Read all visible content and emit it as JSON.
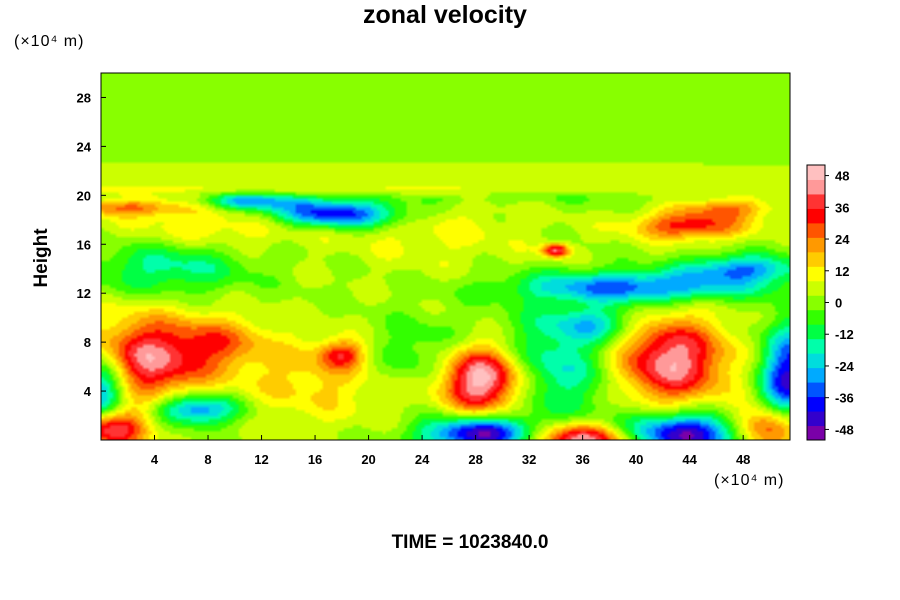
{
  "chart_data": {
    "type": "heatmap",
    "title": "zonal velocity",
    "xlabel": "",
    "ylabel": "Height",
    "x_unit": "(×10⁴ m)",
    "y_unit": "(×10⁴ m)",
    "xlim": [
      0,
      51.5
    ],
    "ylim": [
      0,
      30
    ],
    "xticks": [
      4,
      8,
      12,
      16,
      20,
      24,
      28,
      32,
      36,
      40,
      44,
      48
    ],
    "yticks": [
      4,
      8,
      12,
      16,
      20,
      24,
      28
    ],
    "colorbar": {
      "ticks": [
        48,
        36,
        24,
        12,
        0,
        -12,
        -24,
        -36,
        -48
      ],
      "range": [
        -52,
        52
      ],
      "colors": [
        "#7a00a8",
        "#3300cc",
        "#0000ff",
        "#0055ff",
        "#00aaff",
        "#00dddd",
        "#00ffaa",
        "#00ff44",
        "#33ff00",
        "#88ff00",
        "#ccff00",
        "#ffff00",
        "#ffcc00",
        "#ff9900",
        "#ff5500",
        "#ff0000",
        "#ff3333",
        "#ff9999",
        "#ffc0c0"
      ]
    },
    "field": {
      "background": 2,
      "features": [
        {
          "x": 3,
          "y": 6.5,
          "amp": 42,
          "sx": 3.5,
          "sy": 2.5
        },
        {
          "x": 9,
          "y": 8,
          "amp": 18,
          "sx": 2.5,
          "sy": 1.5
        },
        {
          "x": 28.5,
          "y": 5,
          "amp": 55,
          "sx": 2.2,
          "sy": 2.0
        },
        {
          "x": 42.5,
          "y": 6.5,
          "amp": 45,
          "sx": 3.0,
          "sy": 2.5
        },
        {
          "x": 0,
          "y": 4,
          "amp": -45,
          "sx": 1.5,
          "sy": 2.5
        },
        {
          "x": 51.5,
          "y": 5,
          "amp": -45,
          "sx": 1.5,
          "sy": 3.0
        },
        {
          "x": 0.5,
          "y": 1,
          "amp": 50,
          "sx": 2.0,
          "sy": 1.2
        },
        {
          "x": 7,
          "y": 2.5,
          "amp": -38,
          "sx": 2.2,
          "sy": 0.9
        },
        {
          "x": 28.5,
          "y": 0.5,
          "amp": -52,
          "sx": 3.0,
          "sy": 1.0
        },
        {
          "x": 36,
          "y": 0,
          "amp": 50,
          "sx": 3.0,
          "sy": 1.0
        },
        {
          "x": 43.5,
          "y": 0.5,
          "amp": -52,
          "sx": 3.5,
          "sy": 1.2
        },
        {
          "x": 50,
          "y": 1,
          "amp": 45,
          "sx": 2.0,
          "sy": 1.2
        },
        {
          "x": 17.5,
          "y": 18.5,
          "amp": -44,
          "sx": 3.5,
          "sy": 0.8
        },
        {
          "x": 11,
          "y": 19.5,
          "amp": -30,
          "sx": 2.5,
          "sy": 0.5
        },
        {
          "x": 40,
          "y": 12.5,
          "amp": -36,
          "sx": 6.0,
          "sy": 0.9
        },
        {
          "x": 48,
          "y": 14,
          "amp": -30,
          "sx": 3.0,
          "sy": 0.8
        },
        {
          "x": 5,
          "y": 14,
          "amp": -18,
          "sx": 4.0,
          "sy": 1.5
        },
        {
          "x": 44,
          "y": 17.5,
          "amp": 32,
          "sx": 3.0,
          "sy": 0.8
        },
        {
          "x": 47,
          "y": 19,
          "amp": 20,
          "sx": 2.5,
          "sy": 0.6
        },
        {
          "x": 34,
          "y": 15.5,
          "amp": 40,
          "sx": 0.7,
          "sy": 0.4
        },
        {
          "x": 2,
          "y": 19,
          "amp": 22,
          "sx": 3.5,
          "sy": 0.5
        },
        {
          "x": 9,
          "y": 17.5,
          "amp": 12,
          "sx": 5.0,
          "sy": 1.2
        },
        {
          "x": 25,
          "y": 17,
          "amp": 8,
          "sx": 5.0,
          "sy": 2.0
        },
        {
          "x": 24,
          "y": 7,
          "amp": -12,
          "sx": 3.0,
          "sy": 2.0
        },
        {
          "x": 34,
          "y": 6,
          "amp": -22,
          "sx": 3.5,
          "sy": 3.0
        },
        {
          "x": 16,
          "y": 5,
          "amp": 14,
          "sx": 4.0,
          "sy": 2.5
        },
        {
          "x": 18,
          "y": 7,
          "amp": 26,
          "sx": 1.2,
          "sy": 0.8
        },
        {
          "x": 37,
          "y": 9.5,
          "amp": -20,
          "sx": 2.5,
          "sy": 1.0
        },
        {
          "x": 20,
          "y": 20.5,
          "amp": 8,
          "sx": 30.0,
          "sy": 0.4
        },
        {
          "x": 20,
          "y": 22,
          "amp": 6,
          "sx": 30.0,
          "sy": 0.3
        },
        {
          "x": 30,
          "y": 20,
          "amp": -6,
          "sx": 10.0,
          "sy": 0.5
        }
      ]
    }
  },
  "time_label": "TIME = 1023840.0"
}
